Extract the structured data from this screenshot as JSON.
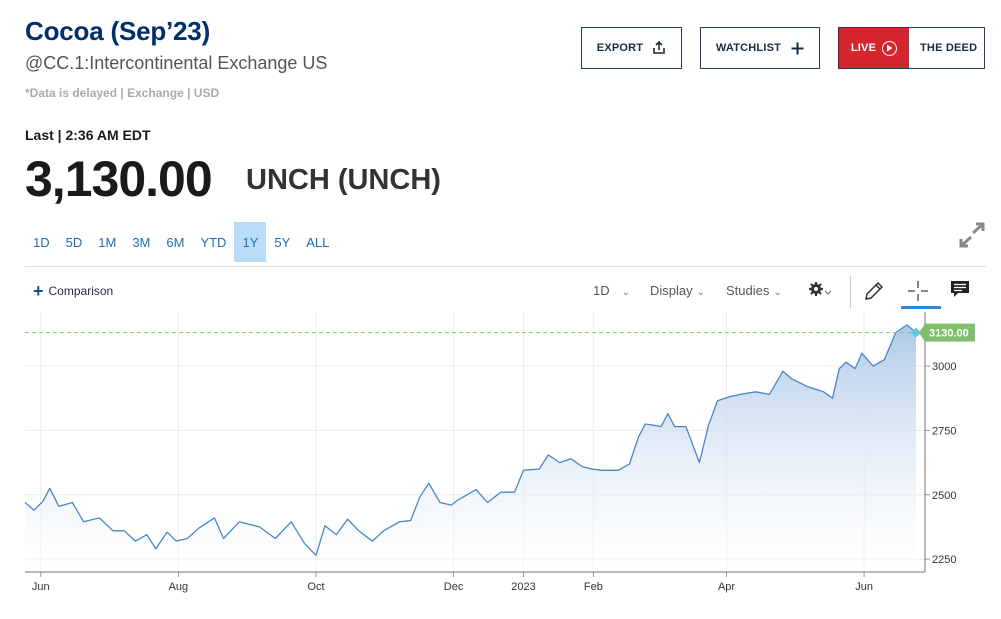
{
  "header": {
    "title": "Cocoa (Sep’23)",
    "subtitle": "@CC.1:Intercontinental Exchange US",
    "delayed": "*Data is delayed | Exchange | USD"
  },
  "buttons": {
    "export": "EXPORT",
    "watchlist": "WATCHLIST",
    "live": "LIVE",
    "deed": "THE DEED"
  },
  "quote": {
    "last_label": "Last | 2:36 AM EDT",
    "price": "3,130.00",
    "change": "UNCH (UNCH)"
  },
  "ranges": [
    "1D",
    "5D",
    "1M",
    "3M",
    "6M",
    "YTD",
    "1Y",
    "5Y",
    "ALL"
  ],
  "active_range": "1Y",
  "toolbar": {
    "comparison": "Comparison",
    "interval": "1D",
    "display": "Display",
    "studies": "Studies"
  },
  "icons": {
    "export": "share-upload-icon",
    "watchlist": "plus-icon",
    "live": "play-circle-icon",
    "expand": "expand-arrows-icon",
    "settings": "gear-icon",
    "draw": "pencil-icon",
    "crosshair": "crosshair-icon",
    "events": "comment-icon"
  },
  "colors": {
    "title": "#002f6c",
    "accent_blue": "#1b6eb6",
    "active_range_bg": "#b9dcf8",
    "live_red": "#d6262d",
    "line": "#4a86c8",
    "area_top": "#a9c6e6",
    "last_price_badge": "#7dbf6b"
  },
  "chart_data": {
    "type": "area",
    "ytick_labels": [
      "3000",
      "2750",
      "2500",
      "2250"
    ],
    "yticks": [
      3000,
      2750,
      2500,
      2250
    ],
    "ylim": [
      2200,
      3210
    ],
    "xlim": [
      "2022-05-25",
      "2023-06-28"
    ],
    "xtick_labels": [
      "Jun",
      "Aug",
      "Oct",
      "Dec",
      "2023",
      "Feb",
      "Apr",
      "Jun"
    ],
    "xticks": [
      "2022-06-01",
      "2022-08-01",
      "2022-10-01",
      "2022-12-01",
      "2023-01-01",
      "2023-02-01",
      "2023-04-01",
      "2023-06-01"
    ],
    "last_value": 3130.0,
    "last_value_label": "3130.00",
    "grid": true,
    "series": [
      {
        "points": [
          [
            "2022-05-25",
            2470
          ],
          [
            "2022-05-29",
            2440
          ],
          [
            "2022-06-02",
            2475
          ],
          [
            "2022-06-05",
            2525
          ],
          [
            "2022-06-09",
            2455
          ],
          [
            "2022-06-15",
            2470
          ],
          [
            "2022-06-20",
            2395
          ],
          [
            "2022-06-27",
            2410
          ],
          [
            "2022-07-03",
            2360
          ],
          [
            "2022-07-08",
            2360
          ],
          [
            "2022-07-13",
            2320
          ],
          [
            "2022-07-18",
            2345
          ],
          [
            "2022-07-22",
            2290
          ],
          [
            "2022-07-27",
            2355
          ],
          [
            "2022-07-31",
            2320
          ],
          [
            "2022-08-05",
            2330
          ],
          [
            "2022-08-10",
            2370
          ],
          [
            "2022-08-17",
            2410
          ],
          [
            "2022-08-21",
            2330
          ],
          [
            "2022-08-28",
            2395
          ],
          [
            "2022-09-06",
            2375
          ],
          [
            "2022-09-13",
            2330
          ],
          [
            "2022-09-20",
            2395
          ],
          [
            "2022-09-26",
            2310
          ],
          [
            "2022-10-01",
            2265
          ],
          [
            "2022-10-05",
            2380
          ],
          [
            "2022-10-10",
            2345
          ],
          [
            "2022-10-15",
            2405
          ],
          [
            "2022-10-20",
            2360
          ],
          [
            "2022-10-26",
            2320
          ],
          [
            "2022-10-31",
            2360
          ],
          [
            "2022-11-07",
            2395
          ],
          [
            "2022-11-12",
            2400
          ],
          [
            "2022-11-16",
            2490
          ],
          [
            "2022-11-20",
            2545
          ],
          [
            "2022-11-25",
            2470
          ],
          [
            "2022-11-30",
            2460
          ],
          [
            "2022-12-03",
            2480
          ],
          [
            "2022-12-11",
            2520
          ],
          [
            "2022-12-16",
            2470
          ],
          [
            "2022-12-22",
            2510
          ],
          [
            "2022-12-28",
            2510
          ],
          [
            "2023-01-01",
            2595
          ],
          [
            "2023-01-08",
            2600
          ],
          [
            "2023-01-12",
            2655
          ],
          [
            "2023-01-17",
            2625
          ],
          [
            "2023-01-22",
            2640
          ],
          [
            "2023-01-27",
            2610
          ],
          [
            "2023-01-31",
            2600
          ],
          [
            "2023-02-05",
            2595
          ],
          [
            "2023-02-12",
            2595
          ],
          [
            "2023-02-17",
            2620
          ],
          [
            "2023-02-21",
            2725
          ],
          [
            "2023-02-24",
            2775
          ],
          [
            "2023-02-28",
            2770
          ],
          [
            "2023-03-03",
            2765
          ],
          [
            "2023-03-06",
            2815
          ],
          [
            "2023-03-09",
            2765
          ],
          [
            "2023-03-14",
            2765
          ],
          [
            "2023-03-20",
            2625
          ],
          [
            "2023-03-24",
            2770
          ],
          [
            "2023-03-28",
            2865
          ],
          [
            "2023-04-02",
            2880
          ],
          [
            "2023-04-07",
            2890
          ],
          [
            "2023-04-14",
            2900
          ],
          [
            "2023-04-20",
            2890
          ],
          [
            "2023-04-26",
            2980
          ],
          [
            "2023-04-30",
            2950
          ],
          [
            "2023-05-07",
            2920
          ],
          [
            "2023-05-14",
            2900
          ],
          [
            "2023-05-18",
            2875
          ],
          [
            "2023-05-21",
            2990
          ],
          [
            "2023-05-24",
            3015
          ],
          [
            "2023-05-28",
            2990
          ],
          [
            "2023-05-31",
            3050
          ],
          [
            "2023-06-05",
            3000
          ],
          [
            "2023-06-10",
            3025
          ],
          [
            "2023-06-15",
            3130
          ],
          [
            "2023-06-20",
            3160
          ],
          [
            "2023-06-24",
            3130
          ]
        ]
      }
    ]
  }
}
